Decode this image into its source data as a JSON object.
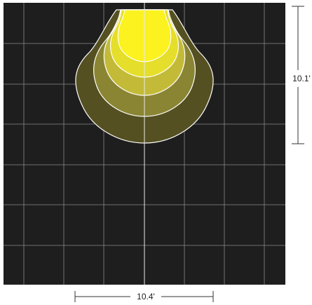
{
  "diagram": {
    "vertical_dimension": "10.1'",
    "horizontal_dimension": "10.4'"
  },
  "colors": {
    "background": "#1f1e1e",
    "grid": "#8a8a8a",
    "contour_outer": "#545021",
    "contour_2": "#8a8532",
    "contour_3": "#c3bb38",
    "contour_4": "#e5de2a",
    "contour_inner": "#fbf21f",
    "contour_stroke": "#ffffff",
    "dimension_line": "#333333"
  }
}
